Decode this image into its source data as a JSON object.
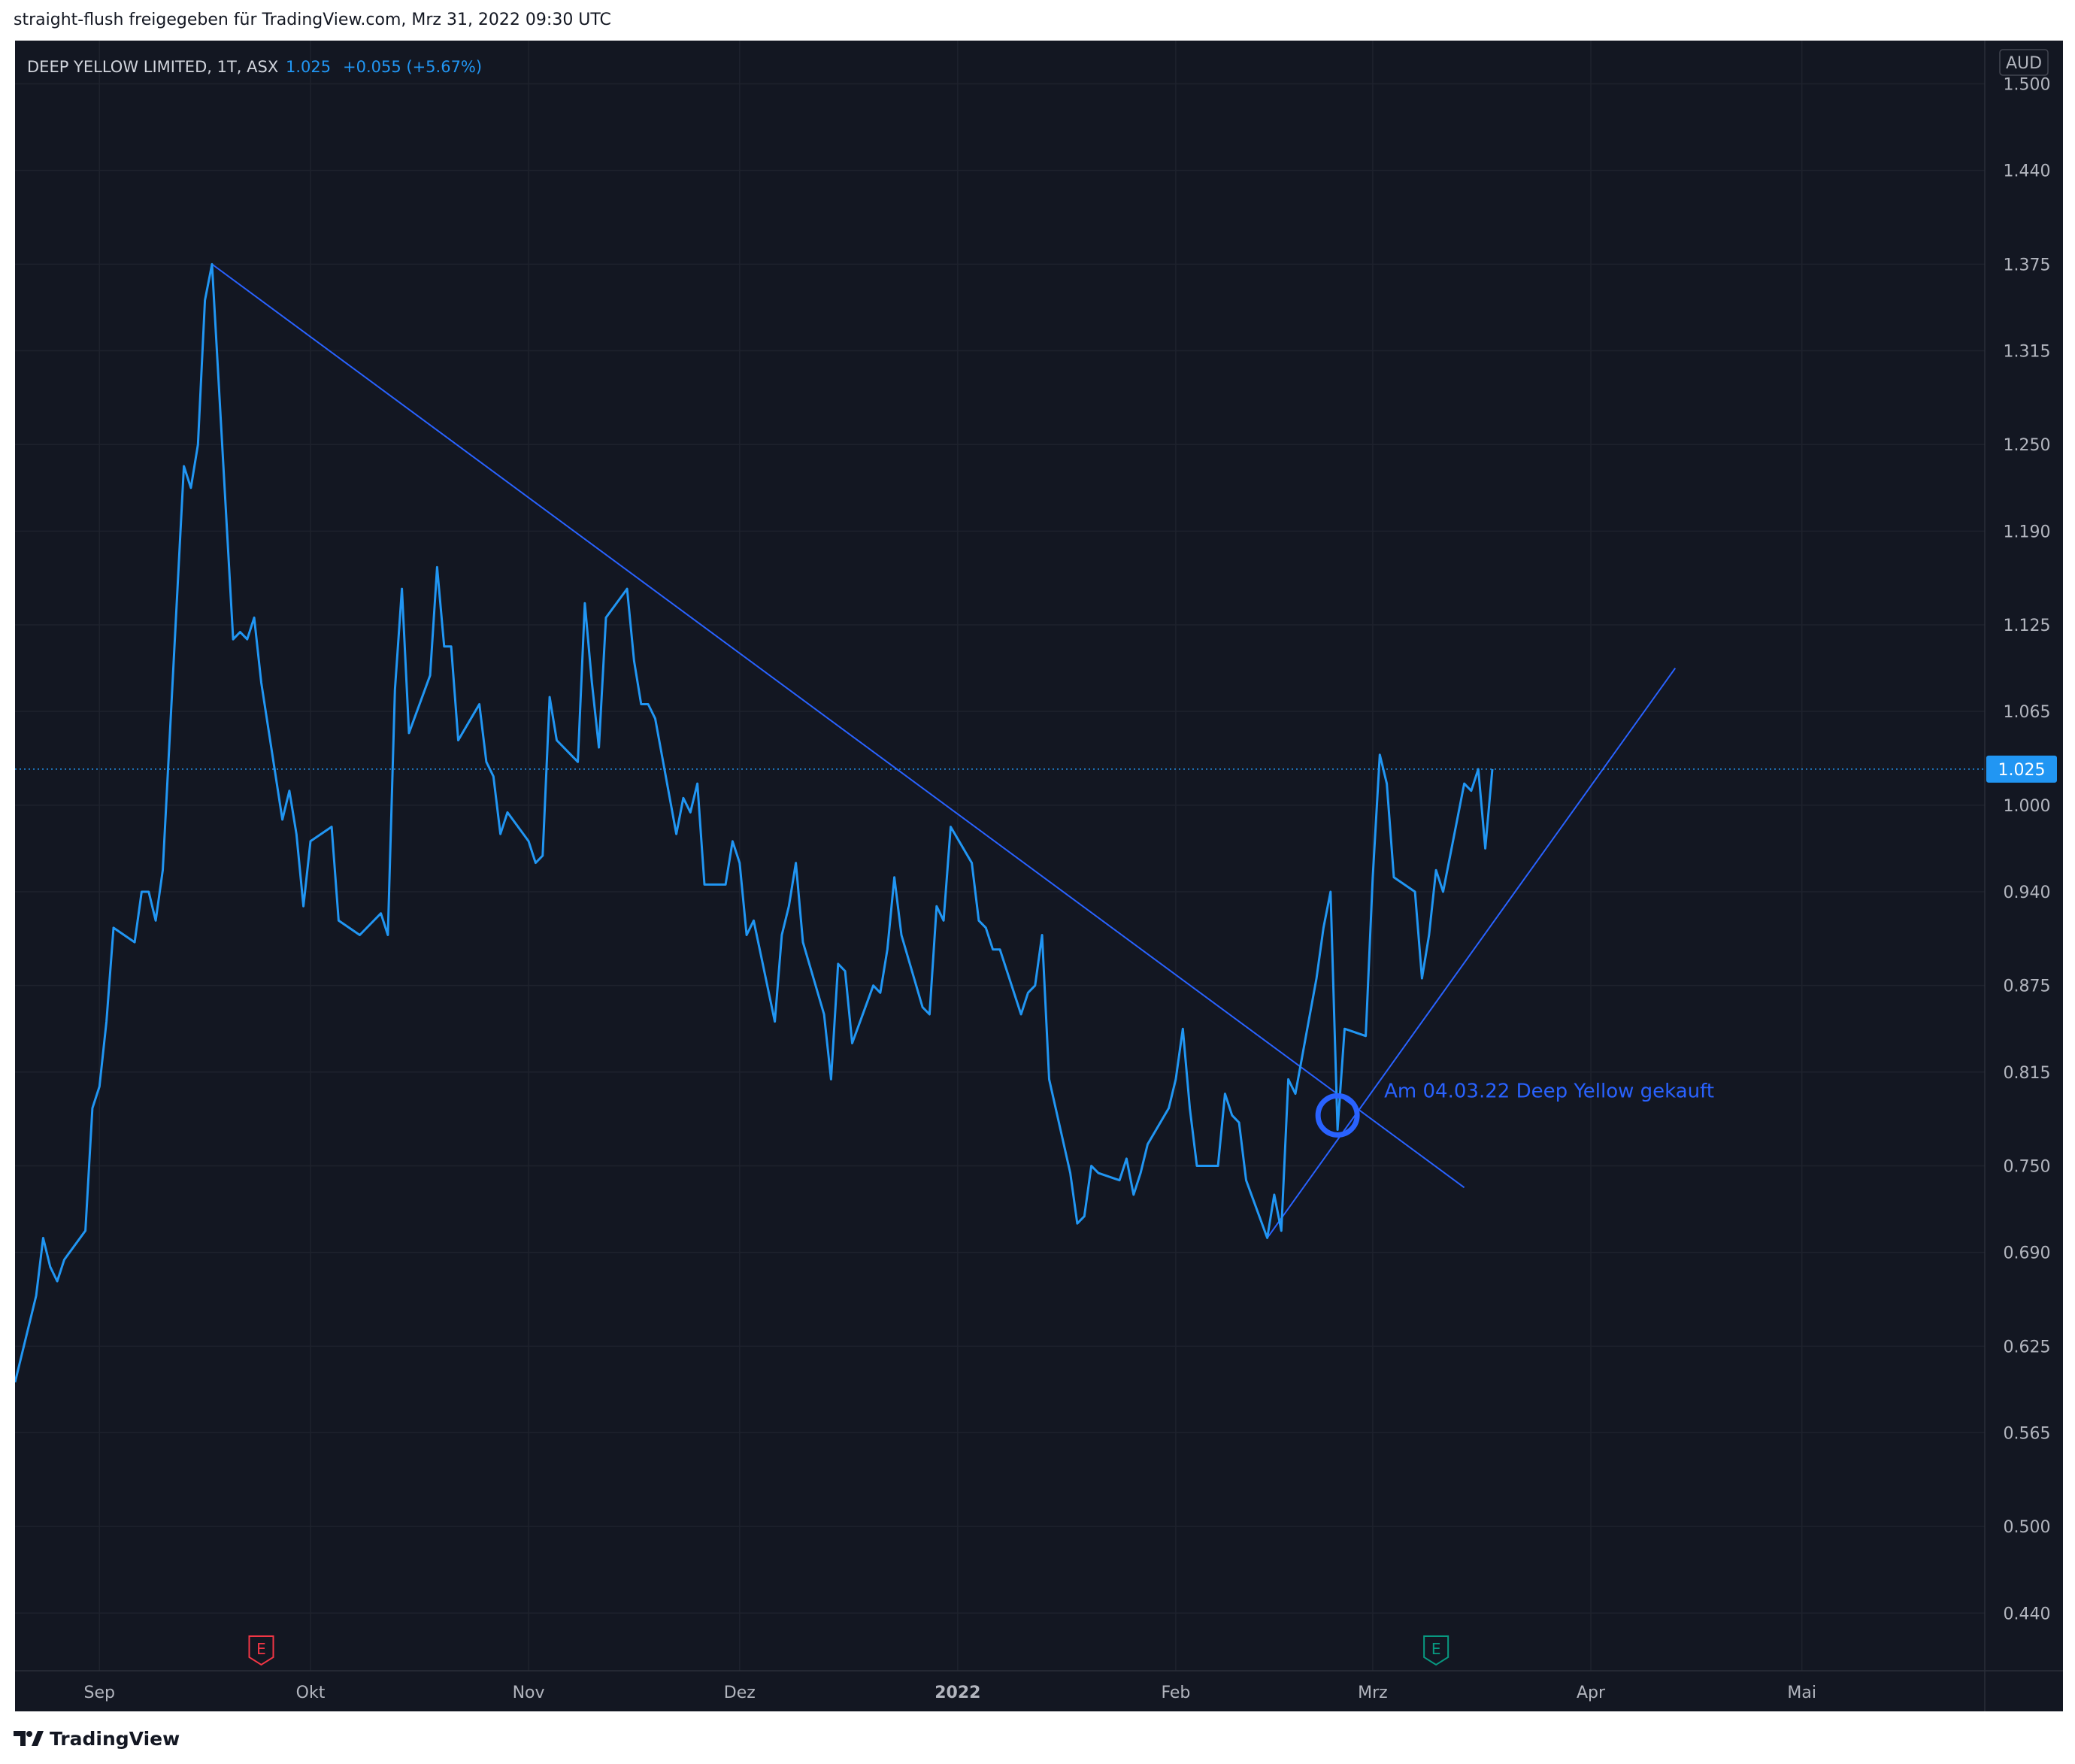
{
  "header": {
    "text": "straight-flush freigegeben für TradingView.com, Mrz 31, 2022 09:30 UTC"
  },
  "legend": {
    "symbol": "DEEP YELLOW LIMITED, 1T, ASX",
    "last": "1.025",
    "change": "+0.055 (+5.67%)"
  },
  "currency": "AUD",
  "last_price_label": "1.025",
  "annotation": "Am 04.03.22 Deep Yellow gekauft",
  "earnings_markers": [
    {
      "label": "E",
      "color": "#f23645"
    },
    {
      "label": "E",
      "color": "#089981"
    }
  ],
  "footer": {
    "brand": "TradingView"
  },
  "colors": {
    "background": "#131722",
    "line": "#2196f3",
    "trendline": "#2962ff",
    "grid": "#1e222d",
    "axis_text": "#b2b5be"
  },
  "chart_data": {
    "type": "line",
    "title": "DEEP YELLOW LIMITED, 1T, ASX",
    "xlabel": "",
    "ylabel": "",
    "ylim": [
      0.4,
      1.53
    ],
    "y_ticks": [
      "1.500",
      "1.440",
      "1.375",
      "1.315",
      "1.250",
      "1.190",
      "1.125",
      "1.065",
      "1.000",
      "0.940",
      "0.875",
      "0.815",
      "0.750",
      "0.690",
      "0.625",
      "0.565",
      "0.500",
      "0.440"
    ],
    "x_ticks": [
      "Sep",
      "Okt",
      "Nov",
      "Dez",
      "2022",
      "Feb",
      "Mrz",
      "Apr",
      "Mai"
    ],
    "x_range": [
      "2021-08-20",
      "2022-05-27"
    ],
    "series": [
      {
        "values": [
          [
            "2021-08-20",
            0.6
          ],
          [
            "2021-08-23",
            0.66
          ],
          [
            "2021-08-24",
            0.7
          ],
          [
            "2021-08-25",
            0.68
          ],
          [
            "2021-08-26",
            0.67
          ],
          [
            "2021-08-27",
            0.685
          ],
          [
            "2021-08-30",
            0.705
          ],
          [
            "2021-08-31",
            0.79
          ],
          [
            "2021-09-01",
            0.805
          ],
          [
            "2021-09-02",
            0.85
          ],
          [
            "2021-09-03",
            0.915
          ],
          [
            "2021-09-06",
            0.905
          ],
          [
            "2021-09-07",
            0.94
          ],
          [
            "2021-09-08",
            0.94
          ],
          [
            "2021-09-09",
            0.92
          ],
          [
            "2021-09-10",
            0.955
          ],
          [
            "2021-09-13",
            1.235
          ],
          [
            "2021-09-14",
            1.22
          ],
          [
            "2021-09-15",
            1.25
          ],
          [
            "2021-09-16",
            1.35
          ],
          [
            "2021-09-17",
            1.375
          ],
          [
            "2021-09-20",
            1.115
          ],
          [
            "2021-09-21",
            1.12
          ],
          [
            "2021-09-22",
            1.115
          ],
          [
            "2021-09-23",
            1.13
          ],
          [
            "2021-09-24",
            1.085
          ],
          [
            "2021-09-27",
            0.99
          ],
          [
            "2021-09-28",
            1.01
          ],
          [
            "2021-09-29",
            0.98
          ],
          [
            "2021-09-30",
            0.93
          ],
          [
            "2021-10-01",
            0.975
          ],
          [
            "2021-10-04",
            0.985
          ],
          [
            "2021-10-05",
            0.92
          ],
          [
            "2021-10-08",
            0.91
          ],
          [
            "2021-10-11",
            0.925
          ],
          [
            "2021-10-12",
            0.91
          ],
          [
            "2021-10-13",
            1.08
          ],
          [
            "2021-10-14",
            1.15
          ],
          [
            "2021-10-15",
            1.05
          ],
          [
            "2021-10-18",
            1.09
          ],
          [
            "2021-10-19",
            1.165
          ],
          [
            "2021-10-20",
            1.11
          ],
          [
            "2021-10-21",
            1.11
          ],
          [
            "2021-10-22",
            1.045
          ],
          [
            "2021-10-25",
            1.07
          ],
          [
            "2021-10-26",
            1.03
          ],
          [
            "2021-10-27",
            1.02
          ],
          [
            "2021-10-28",
            0.98
          ],
          [
            "2021-10-29",
            0.995
          ],
          [
            "2021-11-01",
            0.975
          ],
          [
            "2021-11-02",
            0.96
          ],
          [
            "2021-11-03",
            0.965
          ],
          [
            "2021-11-04",
            1.075
          ],
          [
            "2021-11-05",
            1.045
          ],
          [
            "2021-11-08",
            1.03
          ],
          [
            "2021-11-09",
            1.14
          ],
          [
            "2021-11-10",
            1.085
          ],
          [
            "2021-11-11",
            1.04
          ],
          [
            "2021-11-12",
            1.13
          ],
          [
            "2021-11-15",
            1.15
          ],
          [
            "2021-11-16",
            1.1
          ],
          [
            "2021-11-17",
            1.07
          ],
          [
            "2021-11-18",
            1.07
          ],
          [
            "2021-11-19",
            1.06
          ],
          [
            "2021-11-22",
            0.98
          ],
          [
            "2021-11-23",
            1.005
          ],
          [
            "2021-11-24",
            0.995
          ],
          [
            "2021-11-25",
            1.015
          ],
          [
            "2021-11-26",
            0.945
          ],
          [
            "2021-11-29",
            0.945
          ],
          [
            "2021-11-30",
            0.975
          ],
          [
            "2021-12-01",
            0.96
          ],
          [
            "2021-12-02",
            0.91
          ],
          [
            "2021-12-03",
            0.92
          ],
          [
            "2021-12-06",
            0.85
          ],
          [
            "2021-12-07",
            0.91
          ],
          [
            "2021-12-08",
            0.93
          ],
          [
            "2021-12-09",
            0.96
          ],
          [
            "2021-12-10",
            0.905
          ],
          [
            "2021-12-13",
            0.855
          ],
          [
            "2021-12-14",
            0.81
          ],
          [
            "2021-12-15",
            0.89
          ],
          [
            "2021-12-16",
            0.885
          ],
          [
            "2021-12-17",
            0.835
          ],
          [
            "2021-12-20",
            0.875
          ],
          [
            "2021-12-21",
            0.87
          ],
          [
            "2021-12-22",
            0.9
          ],
          [
            "2021-12-23",
            0.95
          ],
          [
            "2021-12-24",
            0.91
          ],
          [
            "2021-12-27",
            0.86
          ],
          [
            "2021-12-28",
            0.855
          ],
          [
            "2021-12-29",
            0.93
          ],
          [
            "2021-12-30",
            0.92
          ],
          [
            "2021-12-31",
            0.985
          ],
          [
            "2022-01-03",
            0.96
          ],
          [
            "2022-01-04",
            0.92
          ],
          [
            "2022-01-05",
            0.915
          ],
          [
            "2022-01-06",
            0.9
          ],
          [
            "2022-01-07",
            0.9
          ],
          [
            "2022-01-10",
            0.855
          ],
          [
            "2022-01-11",
            0.87
          ],
          [
            "2022-01-12",
            0.875
          ],
          [
            "2022-01-13",
            0.91
          ],
          [
            "2022-01-14",
            0.81
          ],
          [
            "2022-01-17",
            0.745
          ],
          [
            "2022-01-18",
            0.71
          ],
          [
            "2022-01-19",
            0.715
          ],
          [
            "2022-01-20",
            0.75
          ],
          [
            "2022-01-21",
            0.745
          ],
          [
            "2022-01-24",
            0.74
          ],
          [
            "2022-01-25",
            0.755
          ],
          [
            "2022-01-26",
            0.73
          ],
          [
            "2022-01-27",
            0.745
          ],
          [
            "2022-01-28",
            0.765
          ],
          [
            "2022-01-31",
            0.79
          ],
          [
            "2022-02-01",
            0.81
          ],
          [
            "2022-02-02",
            0.845
          ],
          [
            "2022-02-03",
            0.79
          ],
          [
            "2022-02-04",
            0.75
          ],
          [
            "2022-02-07",
            0.75
          ],
          [
            "2022-02-08",
            0.8
          ],
          [
            "2022-02-09",
            0.785
          ],
          [
            "2022-02-10",
            0.78
          ],
          [
            "2022-02-11",
            0.74
          ],
          [
            "2022-02-14",
            0.7
          ],
          [
            "2022-02-15",
            0.73
          ],
          [
            "2022-02-16",
            0.705
          ],
          [
            "2022-02-17",
            0.81
          ],
          [
            "2022-02-18",
            0.8
          ],
          [
            "2022-02-21",
            0.88
          ],
          [
            "2022-02-22",
            0.915
          ],
          [
            "2022-02-23",
            0.94
          ],
          [
            "2022-02-24",
            0.775
          ],
          [
            "2022-02-25",
            0.845
          ],
          [
            "2022-02-28",
            0.84
          ],
          [
            "2022-03-01",
            0.95
          ],
          [
            "2022-03-02",
            1.035
          ],
          [
            "2022-03-03",
            1.015
          ],
          [
            "2022-03-04",
            0.95
          ],
          [
            "2022-03-07",
            0.94
          ],
          [
            "2022-03-08",
            0.88
          ],
          [
            "2022-03-09",
            0.91
          ],
          [
            "2022-03-10",
            0.955
          ],
          [
            "2022-03-11",
            0.94
          ],
          [
            "2022-03-14",
            1.015
          ],
          [
            "2022-03-15",
            1.01
          ],
          [
            "2022-03-16",
            1.025
          ],
          [
            "2022-03-17",
            0.97
          ],
          [
            "2022-03-18",
            1.025
          ]
        ]
      }
    ],
    "trendlines": [
      {
        "from": [
          "2021-09-17",
          1.375
        ],
        "to": [
          "2022-03-14",
          0.735
        ]
      },
      {
        "from": [
          "2022-02-14",
          0.7
        ],
        "to": [
          "2022-04-13",
          1.095
        ]
      }
    ],
    "marker": {
      "date": "2022-02-24",
      "value": 0.785
    },
    "grid": true,
    "legend": "none"
  }
}
